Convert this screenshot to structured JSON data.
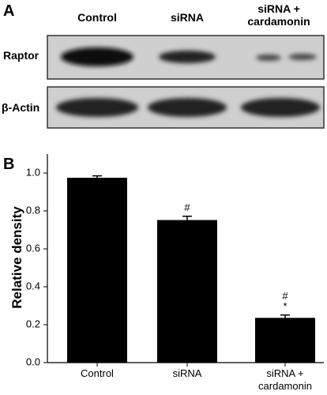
{
  "panel_a": {
    "label": "A",
    "lanes": [
      "Control",
      "siRNA",
      "siRNA + cardamonin"
    ],
    "rows": [
      "Raptor",
      "β-Actin"
    ]
  },
  "chart_data": {
    "type": "bar",
    "panel_label": "B",
    "y_label": "Relative density",
    "categories": [
      "Control",
      "siRNA",
      "siRNA + cardamonin"
    ],
    "series": [
      {
        "name": "Relative density",
        "color": "#000000",
        "values": [
          0.975,
          0.752,
          0.236
        ],
        "errors": [
          0.01,
          0.02,
          0.015
        ]
      }
    ],
    "annotations": [
      {
        "text": "#",
        "x": "siRNA"
      },
      {
        "text": "#",
        "x": "siRNA + cardamonin"
      },
      {
        "text": "*",
        "x": "siRNA + cardamonin"
      }
    ],
    "ylim": [
      0,
      1.1
    ],
    "yticks": [
      {
        "value": 0,
        "label": "0.0"
      },
      {
        "value": 0.2,
        "label": "0.2"
      },
      {
        "value": 0.4,
        "label": "0.4"
      },
      {
        "value": 0.6,
        "label": "0.6"
      },
      {
        "value": 0.8,
        "label": "0.8"
      },
      {
        "value": 1,
        "label": "1.0"
      }
    ]
  }
}
